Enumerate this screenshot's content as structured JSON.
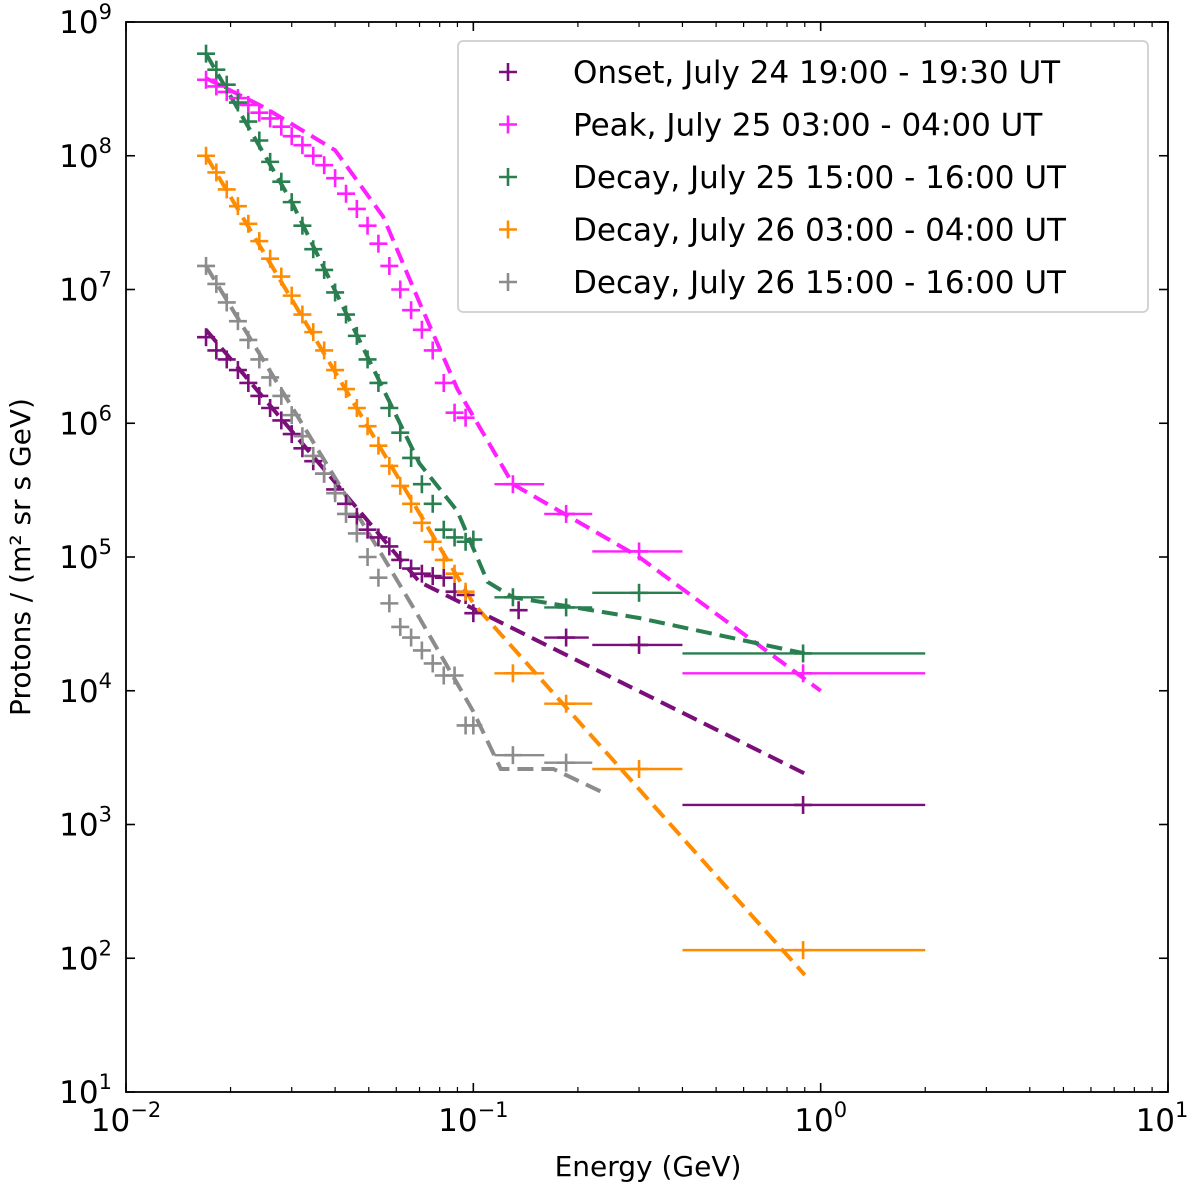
{
  "chart_data": {
    "type": "scatter",
    "title": "",
    "xlabel": "Energy (GeV)",
    "ylabel": "Protons / (m² sr s GeV)",
    "xscale": "log",
    "yscale": "log",
    "xlim": [
      0.01,
      10
    ],
    "ylim": [
      10,
      1000000000
    ],
    "legend_position": "top-right",
    "x_ticks": [
      {
        "value": 0.01,
        "base": "10",
        "exp": "−2"
      },
      {
        "value": 0.1,
        "base": "10",
        "exp": "−1"
      },
      {
        "value": 1,
        "base": "10",
        "exp": "0"
      },
      {
        "value": 10,
        "base": "10",
        "exp": "1"
      }
    ],
    "y_ticks": [
      {
        "value": 10,
        "base": "10",
        "exp": "1"
      },
      {
        "value": 100,
        "base": "10",
        "exp": "2"
      },
      {
        "value": 1000,
        "base": "10",
        "exp": "3"
      },
      {
        "value": 10000,
        "base": "10",
        "exp": "4"
      },
      {
        "value": 100000,
        "base": "10",
        "exp": "5"
      },
      {
        "value": 1000000,
        "base": "10",
        "exp": "6"
      },
      {
        "value": 10000000,
        "base": "10",
        "exp": "7"
      },
      {
        "value": 100000000,
        "base": "10",
        "exp": "8"
      },
      {
        "value": 1000000000,
        "base": "10",
        "exp": "9"
      }
    ],
    "low_energy_x": [
      0.017,
      0.0182,
      0.0195,
      0.021,
      0.0225,
      0.0242,
      0.026,
      0.028,
      0.03,
      0.0322,
      0.0346,
      0.0372,
      0.04,
      0.043,
      0.0462,
      0.0496,
      0.0533,
      0.0573,
      0.0616,
      0.0662,
      0.0711,
      0.0764,
      0.0822,
      0.0883,
      0.095
    ],
    "series": [
      {
        "name": "Onset, July 24 19:00 - 19:30 UT",
        "color": "#7a0f7a",
        "low_energy_y": [
          4400000,
          3500000,
          3000000,
          2500000,
          2000000,
          1600000,
          1300000,
          1050000,
          830000,
          650000,
          520000,
          420000,
          320000,
          250000,
          200000,
          160000,
          140000,
          120000,
          95000,
          82000,
          75000,
          72000,
          70000,
          55000,
          52000
        ],
        "high_energy_points": [
          {
            "x": 0.1,
            "y": 38000,
            "xerr_low": 0.1,
            "xerr_high": 0.1
          },
          {
            "x": 0.135,
            "y": 40000,
            "xerr_low": 0.135,
            "xerr_high": 0.135
          },
          {
            "x": 0.185,
            "y": 25000,
            "xerr_low": 0.16,
            "xerr_high": 0.215
          },
          {
            "x": 0.3,
            "y": 22000,
            "xerr_low": 0.22,
            "xerr_high": 0.4
          },
          {
            "x": 0.89,
            "y": 1400,
            "xerr_low": 0.4,
            "xerr_high": 2.0
          }
        ],
        "fit": [
          {
            "x": 0.017,
            "y": 5000000
          },
          {
            "x": 0.07,
            "y": 65000
          },
          {
            "x": 0.9,
            "y": 2400
          }
        ]
      },
      {
        "name": "Peak, July 25 03:00 - 04:00 UT",
        "color": "#ff1fff",
        "low_energy_y": [
          370000000,
          330000000,
          300000000,
          270000000,
          240000000,
          210000000,
          190000000,
          165000000,
          140000000,
          120000000,
          100000000,
          85000000,
          68000000,
          52000000,
          40000000,
          30000000,
          22000000,
          15000000,
          10000000,
          7000000,
          5000000,
          3500000,
          2000000,
          1200000,
          1100000
        ],
        "high_energy_points": [
          {
            "x": 0.13,
            "y": 350000,
            "xerr_low": 0.115,
            "xerr_high": 0.16
          },
          {
            "x": 0.185,
            "y": 210000,
            "xerr_low": 0.16,
            "xerr_high": 0.22
          },
          {
            "x": 0.3,
            "y": 110000,
            "xerr_low": 0.22,
            "xerr_high": 0.4
          },
          {
            "x": 0.89,
            "y": 13500,
            "xerr_low": 0.4,
            "xerr_high": 2.0
          }
        ],
        "fit": [
          {
            "x": 0.017,
            "y": 380000000
          },
          {
            "x": 0.025,
            "y": 230000000
          },
          {
            "x": 0.04,
            "y": 110000000
          },
          {
            "x": 0.055,
            "y": 35000000
          },
          {
            "x": 0.07,
            "y": 8000000
          },
          {
            "x": 0.09,
            "y": 1800000
          },
          {
            "x": 0.13,
            "y": 350000
          },
          {
            "x": 0.3,
            "y": 100000
          },
          {
            "x": 1.0,
            "y": 10000
          }
        ]
      },
      {
        "name": "Decay, July 25 15:00 - 16:00 UT",
        "color": "#2a7f50",
        "low_energy_y": [
          580000000,
          440000000,
          340000000,
          250000000,
          180000000,
          130000000,
          90000000,
          64000000,
          45000000,
          30000000,
          20000000,
          14000000,
          9500000,
          6500000,
          4500000,
          3000000,
          2000000,
          1300000,
          850000,
          550000,
          350000,
          250000,
          160000,
          140000,
          130000
        ],
        "high_energy_points": [
          {
            "x": 0.1,
            "y": 135000,
            "xerr_low": 0.1,
            "xerr_high": 0.1
          },
          {
            "x": 0.13,
            "y": 50000,
            "xerr_low": 0.115,
            "xerr_high": 0.16
          },
          {
            "x": 0.185,
            "y": 42000,
            "xerr_low": 0.16,
            "xerr_high": 0.22
          },
          {
            "x": 0.3,
            "y": 54000,
            "xerr_low": 0.22,
            "xerr_high": 0.4
          },
          {
            "x": 0.89,
            "y": 19000,
            "xerr_low": 0.4,
            "xerr_high": 2.0
          }
        ],
        "fit": [
          {
            "x": 0.017,
            "y": 580000000
          },
          {
            "x": 0.03,
            "y": 45000000
          },
          {
            "x": 0.05,
            "y": 3000000
          },
          {
            "x": 0.07,
            "y": 500000
          },
          {
            "x": 0.09,
            "y": 220000
          },
          {
            "x": 0.11,
            "y": 65000
          },
          {
            "x": 0.13,
            "y": 50000
          },
          {
            "x": 0.3,
            "y": 35000
          },
          {
            "x": 0.9,
            "y": 19000
          }
        ]
      },
      {
        "name": "Decay, July 26 03:00 - 04:00 UT",
        "color": "#ff8c00",
        "low_energy_y": [
          100000000,
          75000000,
          56000000,
          42000000,
          31000000,
          23000000,
          17000000,
          12500000,
          9000000,
          6500000,
          4800000,
          3500000,
          2500000,
          1800000,
          1300000,
          950000,
          680000,
          480000,
          340000,
          250000,
          180000,
          130000,
          95000,
          75000,
          55000
        ],
        "high_energy_points": [
          {
            "x": 0.13,
            "y": 13500,
            "xerr_low": 0.115,
            "xerr_high": 0.16
          },
          {
            "x": 0.185,
            "y": 8000,
            "xerr_low": 0.16,
            "xerr_high": 0.22
          },
          {
            "x": 0.3,
            "y": 2600,
            "xerr_low": 0.22,
            "xerr_high": 0.4
          },
          {
            "x": 0.89,
            "y": 115,
            "xerr_low": 0.4,
            "xerr_high": 2.0
          }
        ],
        "fit": [
          {
            "x": 0.017,
            "y": 100000000
          },
          {
            "x": 0.1,
            "y": 45000
          },
          {
            "x": 0.9,
            "y": 75
          }
        ]
      },
      {
        "name": "Decay, July 26 15:00 - 16:00 UT",
        "color": "#8c8c8c",
        "low_energy_y": [
          15000000,
          11000000,
          8000000,
          5800000,
          4200000,
          3000000,
          2200000,
          1600000,
          1150000,
          800000,
          570000,
          420000,
          300000,
          210000,
          150000,
          100000,
          70000,
          45000,
          30000,
          25000,
          20000,
          16000,
          13000,
          13000,
          5500
        ],
        "high_energy_points": [
          {
            "x": 0.1,
            "y": 5500,
            "xerr_low": 0.1,
            "xerr_high": 0.1
          },
          {
            "x": 0.13,
            "y": 3300,
            "xerr_low": 0.115,
            "xerr_high": 0.16
          },
          {
            "x": 0.185,
            "y": 2900,
            "xerr_low": 0.16,
            "xerr_high": 0.22
          }
        ],
        "fit": [
          {
            "x": 0.017,
            "y": 15000000
          },
          {
            "x": 0.055,
            "y": 100000
          },
          {
            "x": 0.07,
            "y": 35000
          },
          {
            "x": 0.1,
            "y": 7000
          },
          {
            "x": 0.12,
            "y": 2600
          },
          {
            "x": 0.17,
            "y": 2600
          },
          {
            "x": 0.24,
            "y": 1700
          }
        ]
      }
    ]
  }
}
